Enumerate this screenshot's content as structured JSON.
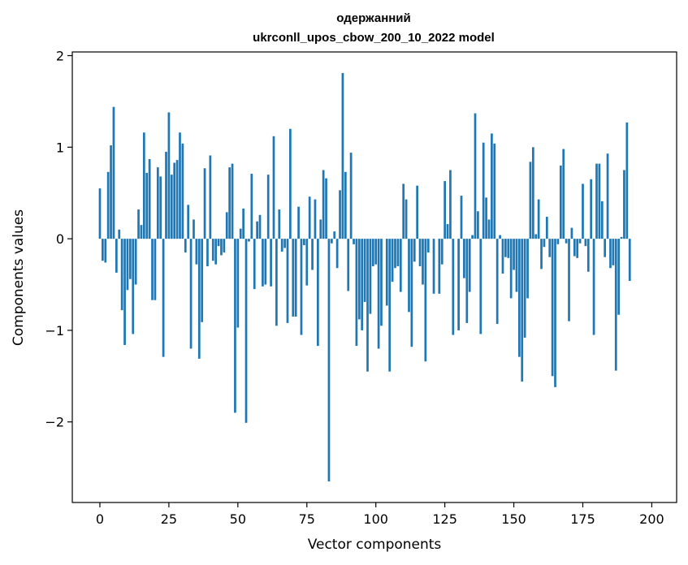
{
  "chart_data": {
    "type": "bar",
    "title_line1": "одержанний",
    "title_line2": "ukrconll_upos_cbow_200_10_2022 model",
    "xlabel": "Vector components",
    "ylabel": "Components values",
    "xlim": [
      -10,
      209
    ],
    "ylim": [
      -2.88,
      2.04
    ],
    "xticks": [
      0,
      25,
      50,
      75,
      100,
      125,
      150,
      175,
      200
    ],
    "xtick_labels": [
      "0",
      "25",
      "50",
      "75",
      "100",
      "125",
      "150",
      "175",
      "200"
    ],
    "yticks": [
      2,
      1,
      0,
      -1,
      -2
    ],
    "ytick_labels": [
      "2",
      "1",
      "0",
      "−1",
      "−2"
    ],
    "bar_color": "#1f77b4",
    "values": [
      0.55,
      -0.24,
      -0.26,
      0.73,
      1.02,
      1.44,
      -0.37,
      0.1,
      -0.78,
      -1.16,
      -0.56,
      -0.44,
      -1.04,
      -0.5,
      0.32,
      0.15,
      1.16,
      0.72,
      0.87,
      -0.67,
      -0.67,
      0.78,
      0.68,
      -1.29,
      0.95,
      1.38,
      0.7,
      0.83,
      0.86,
      1.16,
      1.04,
      -0.15,
      0.37,
      -1.2,
      0.21,
      -0.28,
      -1.31,
      -0.91,
      0.77,
      -0.3,
      0.91,
      -0.24,
      -0.28,
      -0.08,
      -0.18,
      -0.15,
      0.29,
      0.78,
      0.82,
      -1.9,
      -0.97,
      0.11,
      0.33,
      -2.01,
      -0.03,
      0.71,
      -0.55,
      0.19,
      0.26,
      -0.52,
      -0.5,
      0.7,
      -0.52,
      1.12,
      -0.95,
      0.32,
      -0.14,
      -0.1,
      -0.92,
      1.2,
      -0.85,
      -0.85,
      0.35,
      -1.05,
      -0.07,
      -0.51,
      0.46,
      -0.34,
      0.43,
      -1.17,
      0.21,
      0.75,
      0.66,
      -2.65,
      -0.05,
      0.08,
      -0.32,
      0.53,
      1.81,
      0.73,
      -0.57,
      0.94,
      -0.06,
      -1.17,
      -0.88,
      -1.0,
      -0.69,
      -1.45,
      -0.82,
      -0.3,
      -0.28,
      -1.2,
      -0.95,
      0.0,
      -0.73,
      -1.45,
      -0.47,
      -0.32,
      -0.3,
      -0.58,
      0.6,
      0.43,
      -0.8,
      -1.18,
      -0.25,
      0.58,
      -0.3,
      -0.5,
      -1.34,
      -0.15,
      0.0,
      -0.6,
      0.0,
      -0.6,
      -0.28,
      0.63,
      0.16,
      0.75,
      -1.05,
      0.0,
      -1.0,
      0.47,
      -0.43,
      -0.92,
      -0.58,
      0.04,
      1.37,
      0.3,
      -1.04,
      1.05,
      0.45,
      0.21,
      1.15,
      1.04,
      -0.93,
      0.04,
      -0.38,
      -0.2,
      -0.21,
      -0.65,
      -0.34,
      -0.58,
      -1.29,
      -1.56,
      -1.08,
      -0.65,
      0.84,
      1.0,
      0.05,
      0.43,
      -0.33,
      -0.09,
      0.24,
      -0.2,
      -1.5,
      -1.62,
      -0.06,
      0.8,
      0.98,
      -0.05,
      -0.9,
      0.12,
      -0.19,
      -0.21,
      -0.05,
      0.6,
      -0.08,
      -0.36,
      0.65,
      -1.05,
      0.82,
      0.82,
      0.41,
      -0.2,
      0.93,
      -0.32,
      -0.29,
      -1.44,
      -0.83,
      0.02,
      0.75,
      1.27,
      -0.46,
      0.0,
      0.0,
      0.0,
      0.0,
      0.0,
      0.0,
      0.0,
      0.0,
      0.0,
      0.0,
      0.0,
      0.0,
      0.0
    ]
  }
}
